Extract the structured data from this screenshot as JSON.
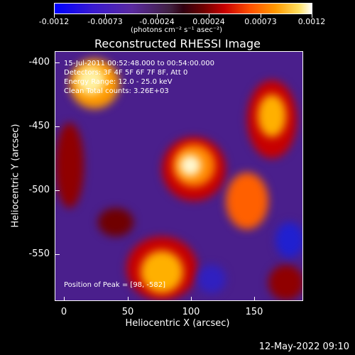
{
  "colorbar": {
    "ticks": [
      "-0.0012",
      "-0.00073",
      "-0.00024",
      "0.00024",
      "0.00073",
      "0.0012"
    ],
    "unit": "(photons cm⁻² s⁻¹ asec⁻²)"
  },
  "title": "Reconstructed RHESSI Image",
  "info": {
    "time": "15-Jul-2011 00:52:48.000 to 00:54:00.000",
    "detectors": "Detectors: 3F 4F 5F 6F 7F 8F, Att 0",
    "energy": "Energy Range: 12.0 - 25.0 keV",
    "clean": "Clean    Total counts: 3.26E+03",
    "peak": "Position of Peak = [98, -582]"
  },
  "axes": {
    "xlabel": "Heliocentric X (arcsec)",
    "ylabel": "Heliocentric Y (arcsec)",
    "xticks": [
      "0",
      "50",
      "100",
      "150"
    ],
    "yticks": [
      "-400",
      "-450",
      "-500",
      "-550"
    ]
  },
  "timestamp": "12-May-2022 09:10"
}
